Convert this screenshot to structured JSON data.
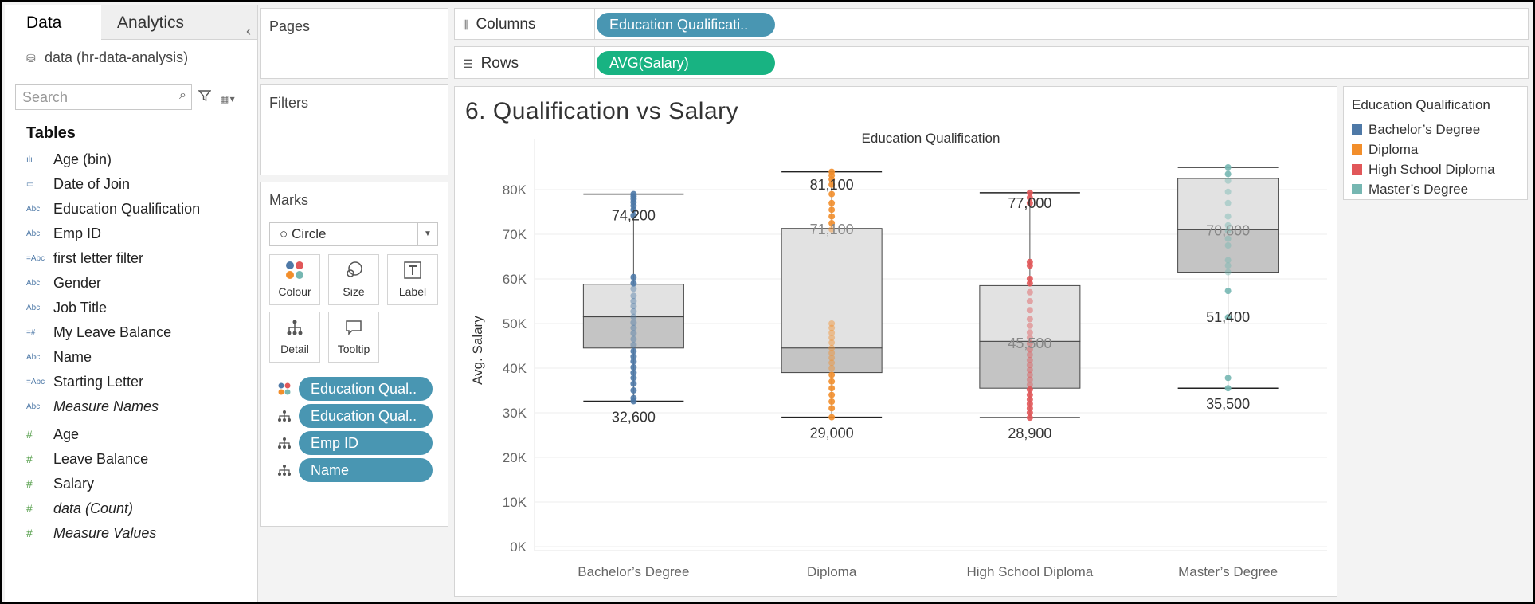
{
  "data_pane": {
    "tab_data": "Data",
    "tab_analytics": "Analytics",
    "datasource": "data (hr-data-analysis)",
    "search_placeholder": "Search",
    "tables_heading": "Tables",
    "dimensions": [
      {
        "label": "Age (bin)",
        "icon": "bin-icon"
      },
      {
        "label": "Date of Join",
        "icon": "calendar-icon"
      },
      {
        "label": "Education Qualification",
        "icon": "abc-icon"
      },
      {
        "label": "Emp ID",
        "icon": "abc-icon"
      },
      {
        "label": "first letter filter",
        "icon": "calc-abc-icon"
      },
      {
        "label": "Gender",
        "icon": "abc-icon"
      },
      {
        "label": "Job Title",
        "icon": "abc-icon"
      },
      {
        "label": "My Leave Balance",
        "icon": "calc-number-icon"
      },
      {
        "label": "Name",
        "icon": "abc-icon"
      },
      {
        "label": "Starting Letter",
        "icon": "calc-abc-icon"
      },
      {
        "label": "Measure Names",
        "icon": "abc-icon"
      }
    ],
    "measures": [
      {
        "label": "Age",
        "icon": "number-icon"
      },
      {
        "label": "Leave Balance",
        "icon": "number-icon"
      },
      {
        "label": "Salary",
        "icon": "number-icon"
      },
      {
        "label": "data (Count)",
        "icon": "number-icon"
      },
      {
        "label": "Measure Values",
        "icon": "number-icon"
      }
    ]
  },
  "shelves": {
    "pages": "Pages",
    "filters": "Filters",
    "marks": "Marks",
    "mark_type": "Circle",
    "mark_buttons": [
      "Colour",
      "Size",
      "Label",
      "Detail",
      "Tooltip"
    ],
    "mark_pills": [
      "Education Qual..",
      "Education Qual..",
      "Emp ID",
      "Name"
    ],
    "columns_label": "Columns",
    "columns_pill": "Education Qualificati..",
    "rows_label": "Rows",
    "rows_pill": "AVG(Salary)",
    "colors": {
      "dimension_pill": "#4996b2",
      "measure_pill": "#18b382"
    }
  },
  "sheet": {
    "title": "6. Qualification vs Salary"
  },
  "legend": {
    "title": "Education Qualification",
    "items": [
      {
        "label": "Bachelor’s Degree",
        "color": "#4e79a7"
      },
      {
        "label": "Diploma",
        "color": "#f28e2b"
      },
      {
        "label": "High School Diploma",
        "color": "#e15759"
      },
      {
        "label": "Master’s Degree",
        "color": "#76b7b2"
      }
    ]
  },
  "chart_data": {
    "type": "box-plot",
    "title": "Education Qualification",
    "xlabel": "",
    "ylabel": "Avg. Salary",
    "ylim": [
      0,
      88000
    ],
    "yticks": [
      0,
      10000,
      20000,
      30000,
      40000,
      50000,
      60000,
      70000,
      80000
    ],
    "ytick_labels": [
      "0K",
      "10K",
      "20K",
      "30K",
      "40K",
      "50K",
      "60K",
      "70K",
      "80K"
    ],
    "grid": true,
    "categories": [
      "Bachelor’s Degree",
      "Diploma",
      "High School Diploma",
      "Master’s Degree"
    ],
    "boxes": [
      {
        "category": "Bachelor’s Degree",
        "color": "#4e79a7",
        "whisker_low": 32600,
        "q1": 44500,
        "median": 51500,
        "q3": 58800,
        "whisker_high": 79000,
        "labels": [
          {
            "text": "74,200",
            "value": 74200
          },
          {
            "text": "32,600",
            "value": 32600
          }
        ],
        "points": [
          32600,
          33300,
          35000,
          36500,
          37800,
          39000,
          40200,
          41500,
          42600,
          43800,
          45200,
          46500,
          47800,
          49000,
          50200,
          51500,
          52700,
          53900,
          55000,
          56200,
          57800,
          59000,
          60400,
          74200,
          75500,
          76400,
          77200,
          77900,
          78500,
          79000
        ]
      },
      {
        "category": "Diploma",
        "color": "#f28e2b",
        "whisker_low": 29000,
        "q1": 39000,
        "median": 44500,
        "q3": 71300,
        "whisker_high": 84000,
        "labels": [
          {
            "text": "81,100",
            "value": 81100
          },
          {
            "text": "71,100",
            "value": 71100
          },
          {
            "text": "29,000",
            "value": 29000
          }
        ],
        "points": [
          29000,
          31000,
          32500,
          34000,
          35500,
          37000,
          38500,
          40000,
          41200,
          42300,
          43400,
          44500,
          45700,
          46800,
          47900,
          49000,
          50000,
          71100,
          72500,
          74000,
          75500,
          77000,
          79000,
          81100,
          82300,
          83200,
          84000
        ]
      },
      {
        "category": "High School Diploma",
        "color": "#e15759",
        "whisker_low": 28900,
        "q1": 35500,
        "median": 46000,
        "q3": 58500,
        "whisker_high": 79300,
        "labels": [
          {
            "text": "77,000",
            "value": 77000
          },
          {
            "text": "45,500",
            "value": 45500
          },
          {
            "text": "28,900",
            "value": 28900
          }
        ],
        "points": [
          28900,
          30000,
          31000,
          32000,
          33000,
          34000,
          35200,
          36300,
          37400,
          38500,
          39600,
          40700,
          41800,
          43000,
          44200,
          45500,
          46800,
          48000,
          49500,
          51000,
          53000,
          55000,
          57000,
          59000,
          60000,
          63000,
          63800,
          77000,
          78200,
          79300
        ]
      },
      {
        "category": "Master’s Degree",
        "color": "#76b7b2",
        "whisker_low": 35500,
        "q1": 61500,
        "median": 71000,
        "q3": 82500,
        "whisker_high": 85000,
        "labels": [
          {
            "text": "70,800",
            "value": 70800
          },
          {
            "text": "51,400",
            "value": 51400
          },
          {
            "text": "35,500",
            "value": 35500
          }
        ],
        "points": [
          35500,
          37800,
          51400,
          57300,
          61500,
          63000,
          64200,
          67500,
          69000,
          70800,
          72000,
          74000,
          77000,
          79500,
          82000,
          83500,
          85000
        ]
      }
    ]
  }
}
